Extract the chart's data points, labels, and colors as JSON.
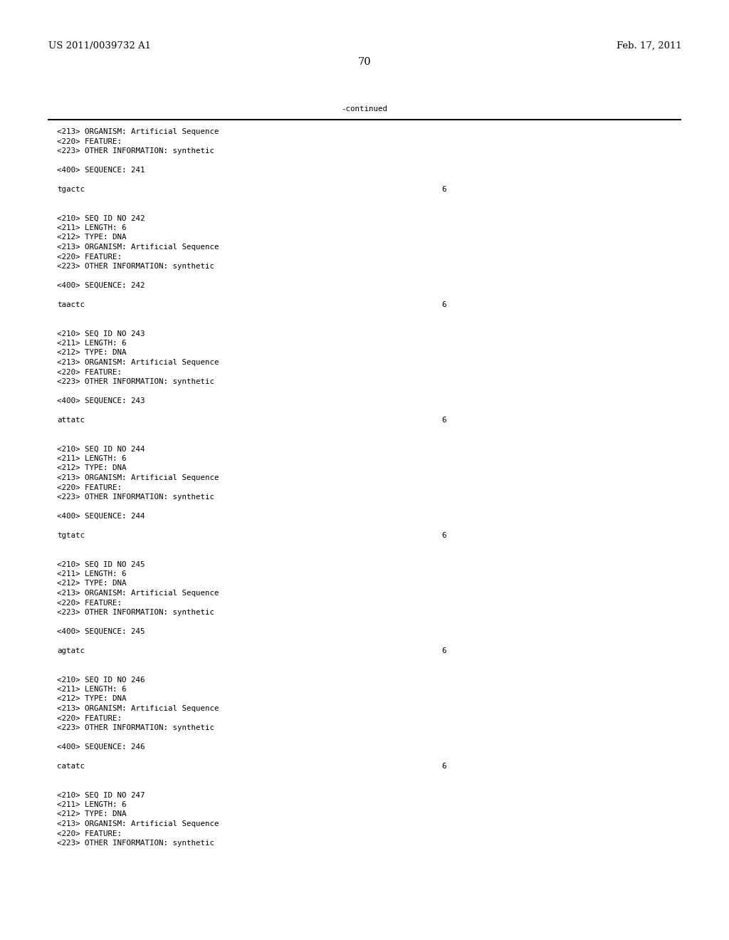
{
  "background_color": "#ffffff",
  "page_number": "70",
  "top_left": "US 2011/0039732 A1",
  "top_right": "Feb. 17, 2011",
  "continued_label": "-continued",
  "font_size_header": 9.5,
  "font_size_mono": 7.8,
  "content_lines": [
    {
      "text": "<213> ORGANISM: Artificial Sequence",
      "right_num": null
    },
    {
      "text": "<220> FEATURE:",
      "right_num": null
    },
    {
      "text": "<223> OTHER INFORMATION: synthetic",
      "right_num": null
    },
    {
      "text": "",
      "right_num": null
    },
    {
      "text": "<400> SEQUENCE: 241",
      "right_num": null
    },
    {
      "text": "",
      "right_num": null
    },
    {
      "text": "tgactc",
      "right_num": "6"
    },
    {
      "text": "",
      "right_num": null
    },
    {
      "text": "",
      "right_num": null
    },
    {
      "text": "<210> SEQ ID NO 242",
      "right_num": null
    },
    {
      "text": "<211> LENGTH: 6",
      "right_num": null
    },
    {
      "text": "<212> TYPE: DNA",
      "right_num": null
    },
    {
      "text": "<213> ORGANISM: Artificial Sequence",
      "right_num": null
    },
    {
      "text": "<220> FEATURE:",
      "right_num": null
    },
    {
      "text": "<223> OTHER INFORMATION: synthetic",
      "right_num": null
    },
    {
      "text": "",
      "right_num": null
    },
    {
      "text": "<400> SEQUENCE: 242",
      "right_num": null
    },
    {
      "text": "",
      "right_num": null
    },
    {
      "text": "taactc",
      "right_num": "6"
    },
    {
      "text": "",
      "right_num": null
    },
    {
      "text": "",
      "right_num": null
    },
    {
      "text": "<210> SEQ ID NO 243",
      "right_num": null
    },
    {
      "text": "<211> LENGTH: 6",
      "right_num": null
    },
    {
      "text": "<212> TYPE: DNA",
      "right_num": null
    },
    {
      "text": "<213> ORGANISM: Artificial Sequence",
      "right_num": null
    },
    {
      "text": "<220> FEATURE:",
      "right_num": null
    },
    {
      "text": "<223> OTHER INFORMATION: synthetic",
      "right_num": null
    },
    {
      "text": "",
      "right_num": null
    },
    {
      "text": "<400> SEQUENCE: 243",
      "right_num": null
    },
    {
      "text": "",
      "right_num": null
    },
    {
      "text": "attatc",
      "right_num": "6"
    },
    {
      "text": "",
      "right_num": null
    },
    {
      "text": "",
      "right_num": null
    },
    {
      "text": "<210> SEQ ID NO 244",
      "right_num": null
    },
    {
      "text": "<211> LENGTH: 6",
      "right_num": null
    },
    {
      "text": "<212> TYPE: DNA",
      "right_num": null
    },
    {
      "text": "<213> ORGANISM: Artificial Sequence",
      "right_num": null
    },
    {
      "text": "<220> FEATURE:",
      "right_num": null
    },
    {
      "text": "<223> OTHER INFORMATION: synthetic",
      "right_num": null
    },
    {
      "text": "",
      "right_num": null
    },
    {
      "text": "<400> SEQUENCE: 244",
      "right_num": null
    },
    {
      "text": "",
      "right_num": null
    },
    {
      "text": "tgtatc",
      "right_num": "6"
    },
    {
      "text": "",
      "right_num": null
    },
    {
      "text": "",
      "right_num": null
    },
    {
      "text": "<210> SEQ ID NO 245",
      "right_num": null
    },
    {
      "text": "<211> LENGTH: 6",
      "right_num": null
    },
    {
      "text": "<212> TYPE: DNA",
      "right_num": null
    },
    {
      "text": "<213> ORGANISM: Artificial Sequence",
      "right_num": null
    },
    {
      "text": "<220> FEATURE:",
      "right_num": null
    },
    {
      "text": "<223> OTHER INFORMATION: synthetic",
      "right_num": null
    },
    {
      "text": "",
      "right_num": null
    },
    {
      "text": "<400> SEQUENCE: 245",
      "right_num": null
    },
    {
      "text": "",
      "right_num": null
    },
    {
      "text": "agtatc",
      "right_num": "6"
    },
    {
      "text": "",
      "right_num": null
    },
    {
      "text": "",
      "right_num": null
    },
    {
      "text": "<210> SEQ ID NO 246",
      "right_num": null
    },
    {
      "text": "<211> LENGTH: 6",
      "right_num": null
    },
    {
      "text": "<212> TYPE: DNA",
      "right_num": null
    },
    {
      "text": "<213> ORGANISM: Artificial Sequence",
      "right_num": null
    },
    {
      "text": "<220> FEATURE:",
      "right_num": null
    },
    {
      "text": "<223> OTHER INFORMATION: synthetic",
      "right_num": null
    },
    {
      "text": "",
      "right_num": null
    },
    {
      "text": "<400> SEQUENCE: 246",
      "right_num": null
    },
    {
      "text": "",
      "right_num": null
    },
    {
      "text": "catatc",
      "right_num": "6"
    },
    {
      "text": "",
      "right_num": null
    },
    {
      "text": "",
      "right_num": null
    },
    {
      "text": "<210> SEQ ID NO 247",
      "right_num": null
    },
    {
      "text": "<211> LENGTH: 6",
      "right_num": null
    },
    {
      "text": "<212> TYPE: DNA",
      "right_num": null
    },
    {
      "text": "<213> ORGANISM: Artificial Sequence",
      "right_num": null
    },
    {
      "text": "<220> FEATURE:",
      "right_num": null
    },
    {
      "text": "<223> OTHER INFORMATION: synthetic",
      "right_num": null
    }
  ]
}
